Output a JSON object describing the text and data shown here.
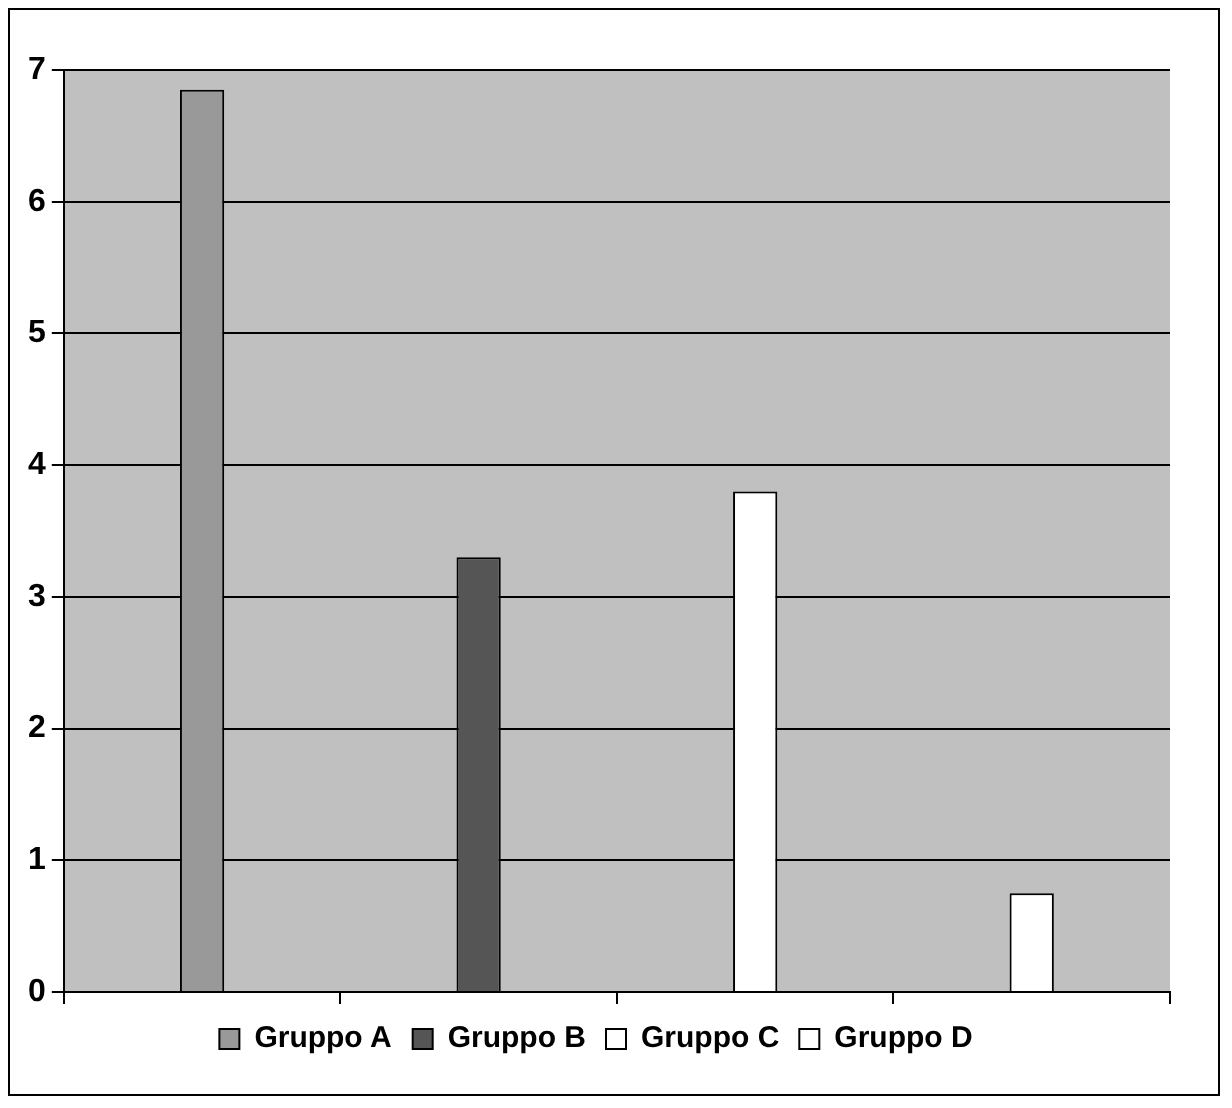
{
  "chart_data": {
    "type": "bar",
    "categories": [
      null,
      null,
      null,
      null
    ],
    "series": [
      {
        "name": "Gruppo A",
        "color": "#999999",
        "values": [
          6.85,
          null,
          null,
          null
        ]
      },
      {
        "name": "Gruppo B",
        "color": "#555555",
        "values": [
          null,
          3.3,
          null,
          null
        ]
      },
      {
        "name": "Gruppo C",
        "color": "#ffffff",
        "values": [
          null,
          null,
          3.8,
          null
        ]
      },
      {
        "name": "Gruppo D",
        "color": "#ffffff",
        "values": [
          null,
          null,
          null,
          0.75
        ]
      }
    ],
    "ylim": [
      0,
      7
    ],
    "yticks": [
      0,
      1,
      2,
      3,
      4,
      5,
      6,
      7
    ],
    "grid": "y",
    "legend": "bottom",
    "tick_labels": "y"
  }
}
